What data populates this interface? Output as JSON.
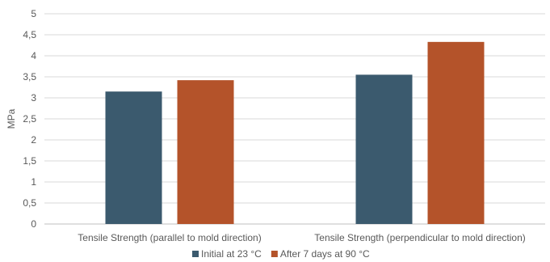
{
  "chart_data": {
    "type": "bar",
    "title": "",
    "xlabel": "",
    "ylabel": "MPa",
    "ylim": [
      0,
      5
    ],
    "yticks": [
      "0",
      "0,5",
      "1",
      "1,5",
      "2",
      "2,5",
      "3",
      "3,5",
      "4",
      "4,5",
      "5"
    ],
    "categories": [
      "Tensile Strength (parallel to mold direction)",
      "Tensile Strength (perpendicular to mold direction)"
    ],
    "series": [
      {
        "name": "Initial at 23 °C",
        "color": "#3B5A6E",
        "values": [
          3.15,
          3.55
        ]
      },
      {
        "name": "After 7 days at 90 °C",
        "color": "#B4532A",
        "values": [
          3.42,
          4.33
        ]
      }
    ],
    "grid": true,
    "legend_position": "bottom"
  }
}
